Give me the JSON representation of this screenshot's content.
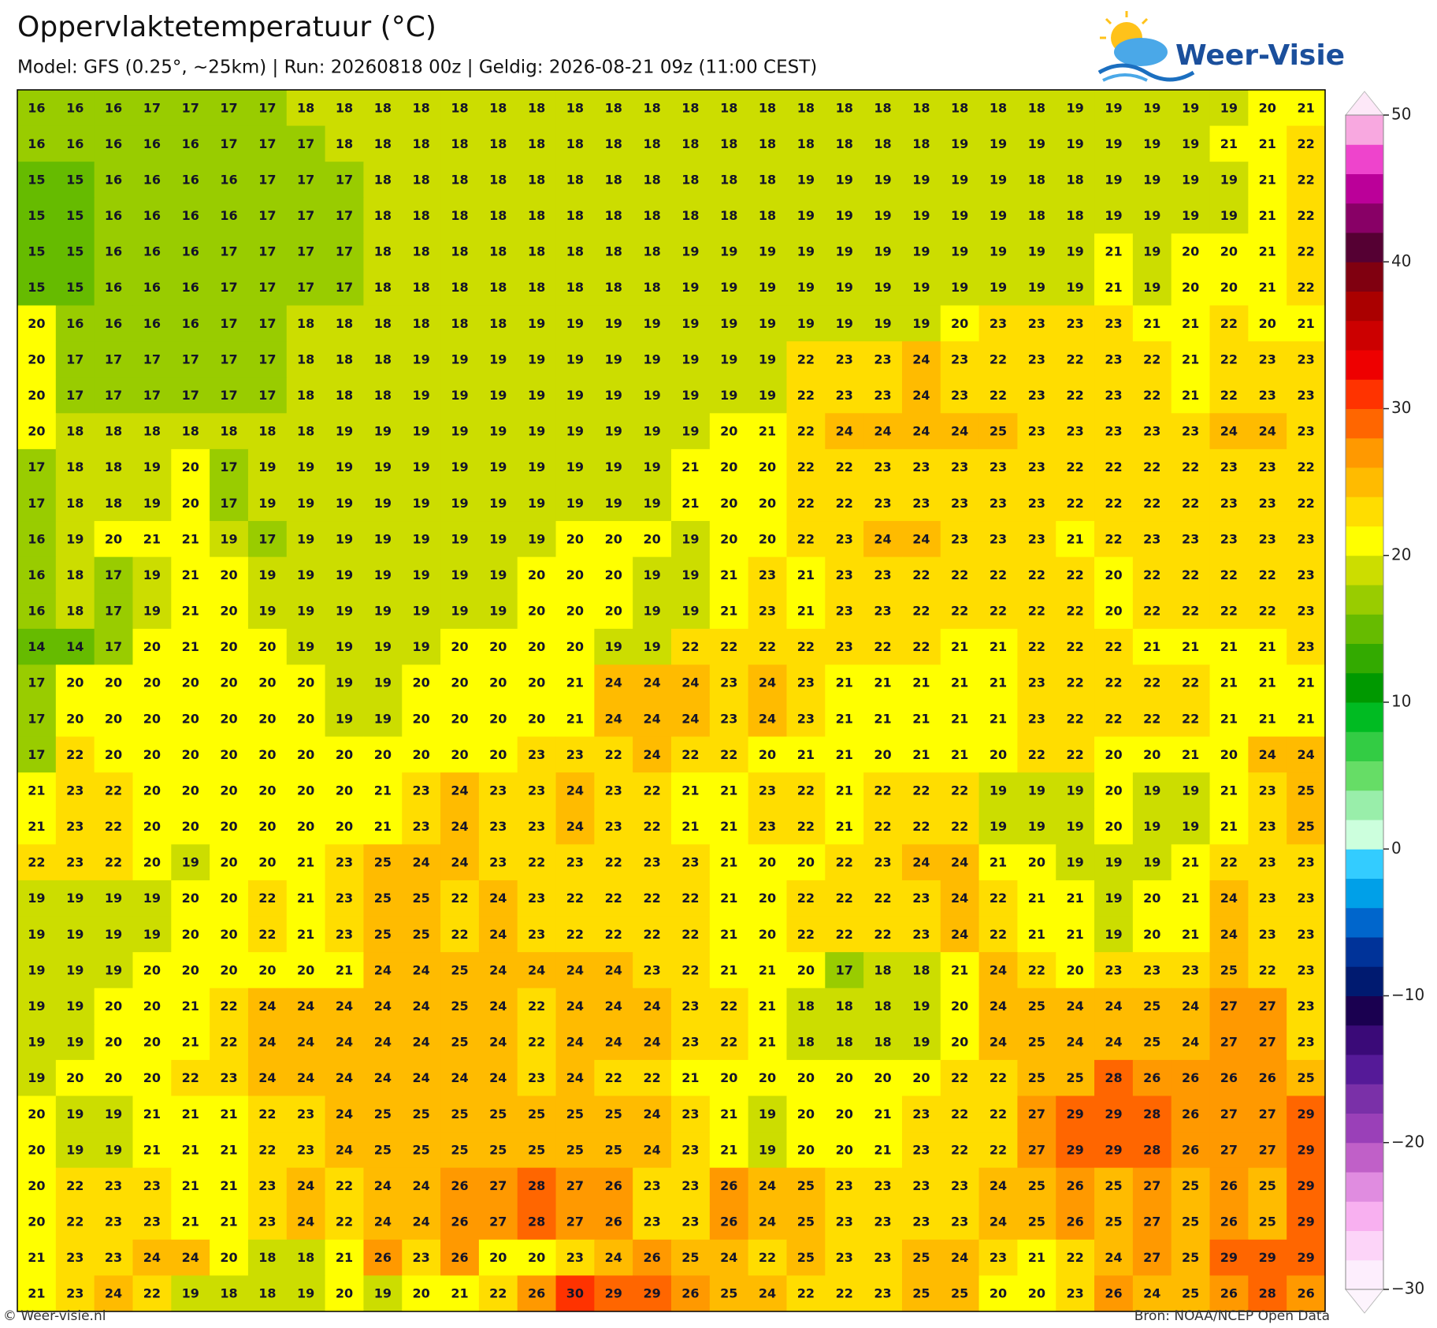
{
  "header": {
    "title": "Oppervlaktetemperatuur (°C)",
    "subtitle": "Model: GFS (0.25°, ~25km)  |  Run: 20260818 00z  |  Geldig: 2026-08-21 09z (11:00 CEST)",
    "logo": "Weer-Visie"
  },
  "map": {
    "grid": [
      [
        16,
        16,
        16,
        17,
        17,
        17,
        17,
        18,
        18,
        18,
        18,
        18,
        18,
        18,
        18,
        18,
        18,
        18,
        18,
        18,
        18,
        18,
        18,
        18,
        18,
        18,
        18,
        19,
        19,
        19,
        19,
        19,
        20,
        21
      ],
      [
        16,
        16,
        16,
        16,
        16,
        17,
        17,
        17,
        18,
        18,
        18,
        18,
        18,
        18,
        18,
        18,
        18,
        18,
        18,
        18,
        18,
        18,
        18,
        18,
        19,
        19,
        19,
        19,
        19,
        19,
        19,
        21,
        21,
        22
      ],
      [
        15,
        15,
        16,
        16,
        16,
        16,
        17,
        17,
        17,
        18,
        18,
        18,
        18,
        18,
        18,
        18,
        18,
        18,
        18,
        18,
        19,
        19,
        19,
        19,
        19,
        19,
        18,
        18,
        19,
        19,
        19,
        19,
        21,
        22
      ],
      [
        15,
        15,
        16,
        16,
        16,
        16,
        17,
        17,
        17,
        18,
        18,
        18,
        18,
        18,
        18,
        18,
        18,
        18,
        18,
        18,
        19,
        19,
        19,
        19,
        19,
        19,
        18,
        18,
        19,
        19,
        19,
        19,
        21,
        22
      ],
      [
        15,
        15,
        16,
        16,
        16,
        17,
        17,
        17,
        17,
        18,
        18,
        18,
        18,
        18,
        18,
        18,
        18,
        19,
        19,
        19,
        19,
        19,
        19,
        19,
        19,
        19,
        19,
        19,
        21,
        19,
        20,
        20,
        21,
        22
      ],
      [
        15,
        15,
        16,
        16,
        16,
        17,
        17,
        17,
        17,
        18,
        18,
        18,
        18,
        18,
        18,
        18,
        18,
        19,
        19,
        19,
        19,
        19,
        19,
        19,
        19,
        19,
        19,
        19,
        21,
        19,
        20,
        20,
        21,
        22
      ],
      [
        20,
        16,
        16,
        16,
        16,
        17,
        17,
        18,
        18,
        18,
        18,
        18,
        18,
        19,
        19,
        19,
        19,
        19,
        19,
        19,
        19,
        19,
        19,
        19,
        20,
        23,
        23,
        23,
        23,
        21,
        21,
        22,
        20,
        21
      ],
      [
        20,
        17,
        17,
        17,
        17,
        17,
        17,
        18,
        18,
        18,
        19,
        19,
        19,
        19,
        19,
        19,
        19,
        19,
        19,
        19,
        22,
        23,
        23,
        24,
        23,
        22,
        23,
        22,
        23,
        22,
        21,
        22,
        23,
        23
      ],
      [
        20,
        17,
        17,
        17,
        17,
        17,
        17,
        18,
        18,
        18,
        19,
        19,
        19,
        19,
        19,
        19,
        19,
        19,
        19,
        19,
        22,
        23,
        23,
        24,
        23,
        22,
        23,
        22,
        23,
        22,
        21,
        22,
        23,
        23
      ],
      [
        20,
        18,
        18,
        18,
        18,
        18,
        18,
        18,
        19,
        19,
        19,
        19,
        19,
        19,
        19,
        19,
        19,
        19,
        20,
        21,
        22,
        24,
        24,
        24,
        24,
        25,
        23,
        23,
        23,
        23,
        23,
        24,
        24,
        23
      ],
      [
        17,
        18,
        18,
        19,
        20,
        17,
        19,
        19,
        19,
        19,
        19,
        19,
        19,
        19,
        19,
        19,
        19,
        21,
        20,
        20,
        22,
        22,
        23,
        23,
        23,
        23,
        23,
        22,
        22,
        22,
        22,
        23,
        23,
        22
      ],
      [
        17,
        18,
        18,
        19,
        20,
        17,
        19,
        19,
        19,
        19,
        19,
        19,
        19,
        19,
        19,
        19,
        19,
        21,
        20,
        20,
        22,
        22,
        23,
        23,
        23,
        23,
        23,
        22,
        22,
        22,
        22,
        23,
        23,
        22
      ],
      [
        16,
        19,
        20,
        21,
        21,
        19,
        17,
        19,
        19,
        19,
        19,
        19,
        19,
        19,
        20,
        20,
        20,
        19,
        20,
        20,
        22,
        23,
        24,
        24,
        23,
        23,
        23,
        21,
        22,
        23,
        23,
        23,
        23,
        23
      ],
      [
        16,
        18,
        17,
        19,
        21,
        20,
        19,
        19,
        19,
        19,
        19,
        19,
        19,
        20,
        20,
        20,
        19,
        19,
        21,
        23,
        21,
        23,
        23,
        22,
        22,
        22,
        22,
        22,
        20,
        22,
        22,
        22,
        22,
        23
      ],
      [
        16,
        18,
        17,
        19,
        21,
        20,
        19,
        19,
        19,
        19,
        19,
        19,
        19,
        20,
        20,
        20,
        19,
        19,
        21,
        23,
        21,
        23,
        23,
        22,
        22,
        22,
        22,
        22,
        20,
        22,
        22,
        22,
        22,
        23
      ],
      [
        14,
        14,
        17,
        20,
        21,
        20,
        20,
        19,
        19,
        19,
        19,
        20,
        20,
        20,
        20,
        19,
        19,
        22,
        22,
        22,
        22,
        23,
        22,
        22,
        21,
        21,
        22,
        22,
        22,
        21,
        21,
        21,
        21,
        23
      ],
      [
        17,
        20,
        20,
        20,
        20,
        20,
        20,
        20,
        19,
        19,
        20,
        20,
        20,
        20,
        21,
        24,
        24,
        24,
        23,
        24,
        23,
        21,
        21,
        21,
        21,
        21,
        23,
        22,
        22,
        22,
        22,
        21,
        21,
        21
      ],
      [
        17,
        20,
        20,
        20,
        20,
        20,
        20,
        20,
        19,
        19,
        20,
        20,
        20,
        20,
        21,
        24,
        24,
        24,
        23,
        24,
        23,
        21,
        21,
        21,
        21,
        21,
        23,
        22,
        22,
        22,
        22,
        21,
        21,
        21
      ],
      [
        17,
        22,
        20,
        20,
        20,
        20,
        20,
        20,
        20,
        20,
        20,
        20,
        20,
        23,
        23,
        22,
        24,
        22,
        22,
        20,
        21,
        21,
        20,
        21,
        21,
        20,
        22,
        22,
        20,
        20,
        21,
        20,
        24,
        24
      ],
      [
        21,
        23,
        22,
        20,
        20,
        20,
        20,
        20,
        20,
        21,
        23,
        24,
        23,
        23,
        24,
        23,
        22,
        21,
        21,
        23,
        22,
        21,
        22,
        22,
        22,
        19,
        19,
        19,
        20,
        19,
        19,
        21,
        23,
        25
      ],
      [
        21,
        23,
        22,
        20,
        20,
        20,
        20,
        20,
        20,
        21,
        23,
        24,
        23,
        23,
        24,
        23,
        22,
        21,
        21,
        23,
        22,
        21,
        22,
        22,
        22,
        19,
        19,
        19,
        20,
        19,
        19,
        21,
        23,
        25
      ],
      [
        22,
        23,
        22,
        20,
        19,
        20,
        20,
        21,
        23,
        25,
        24,
        24,
        23,
        22,
        23,
        22,
        23,
        23,
        21,
        20,
        20,
        22,
        23,
        24,
        24,
        21,
        20,
        19,
        19,
        19,
        21,
        22,
        23,
        23
      ],
      [
        19,
        19,
        19,
        19,
        20,
        20,
        22,
        21,
        23,
        25,
        25,
        22,
        24,
        23,
        22,
        22,
        22,
        22,
        21,
        20,
        22,
        22,
        22,
        23,
        24,
        22,
        21,
        21,
        19,
        20,
        21,
        24,
        23,
        23
      ],
      [
        19,
        19,
        19,
        19,
        20,
        20,
        22,
        21,
        23,
        25,
        25,
        22,
        24,
        23,
        22,
        22,
        22,
        22,
        21,
        20,
        22,
        22,
        22,
        23,
        24,
        22,
        21,
        21,
        19,
        20,
        21,
        24,
        23,
        23
      ],
      [
        19,
        19,
        19,
        20,
        20,
        20,
        20,
        20,
        21,
        24,
        24,
        25,
        24,
        24,
        24,
        24,
        23,
        22,
        21,
        21,
        20,
        17,
        18,
        18,
        21,
        24,
        22,
        20,
        23,
        23,
        23,
        25,
        22,
        23
      ],
      [
        19,
        19,
        20,
        20,
        21,
        22,
        24,
        24,
        24,
        24,
        24,
        25,
        24,
        22,
        24,
        24,
        24,
        23,
        22,
        21,
        18,
        18,
        18,
        19,
        20,
        24,
        25,
        24,
        24,
        25,
        24,
        27,
        27,
        23
      ],
      [
        19,
        19,
        20,
        20,
        21,
        22,
        24,
        24,
        24,
        24,
        24,
        25,
        24,
        22,
        24,
        24,
        24,
        23,
        22,
        21,
        18,
        18,
        18,
        19,
        20,
        24,
        25,
        24,
        24,
        25,
        24,
        27,
        27,
        23
      ],
      [
        19,
        20,
        20,
        20,
        22,
        23,
        24,
        24,
        24,
        24,
        24,
        24,
        24,
        23,
        24,
        22,
        22,
        21,
        20,
        20,
        20,
        20,
        20,
        20,
        22,
        22,
        25,
        25,
        28,
        26,
        26,
        26,
        26,
        25
      ],
      [
        20,
        19,
        19,
        21,
        21,
        21,
        22,
        23,
        24,
        25,
        25,
        25,
        25,
        25,
        25,
        25,
        24,
        23,
        21,
        19,
        20,
        20,
        21,
        23,
        22,
        22,
        27,
        29,
        29,
        28,
        26,
        27,
        27,
        29
      ],
      [
        20,
        19,
        19,
        21,
        21,
        21,
        22,
        23,
        24,
        25,
        25,
        25,
        25,
        25,
        25,
        25,
        24,
        23,
        21,
        19,
        20,
        20,
        21,
        23,
        22,
        22,
        27,
        29,
        29,
        28,
        26,
        27,
        27,
        29
      ],
      [
        20,
        22,
        23,
        23,
        21,
        21,
        23,
        24,
        22,
        24,
        24,
        26,
        27,
        28,
        27,
        26,
        23,
        23,
        26,
        24,
        25,
        23,
        23,
        23,
        23,
        24,
        25,
        26,
        25,
        27,
        25,
        26,
        25,
        29
      ],
      [
        20,
        22,
        23,
        23,
        21,
        21,
        23,
        24,
        22,
        24,
        24,
        26,
        27,
        28,
        27,
        26,
        23,
        23,
        26,
        24,
        25,
        23,
        23,
        23,
        23,
        24,
        25,
        26,
        25,
        27,
        25,
        26,
        25,
        29
      ],
      [
        21,
        23,
        23,
        24,
        24,
        20,
        18,
        18,
        21,
        26,
        23,
        26,
        20,
        20,
        23,
        24,
        26,
        25,
        24,
        22,
        25,
        23,
        23,
        25,
        24,
        23,
        21,
        22,
        24,
        27,
        25,
        29,
        29,
        29
      ],
      [
        21,
        23,
        24,
        22,
        19,
        18,
        18,
        19,
        20,
        19,
        20,
        21,
        22,
        26,
        30,
        29,
        29,
        26,
        25,
        24,
        22,
        22,
        23,
        25,
        25,
        20,
        20,
        23,
        26,
        24,
        25,
        26,
        28,
        26
      ]
    ],
    "colorbar": {
      "lim": [
        -30,
        50
      ],
      "ticks": [
        {
          "value": -30,
          "label": "−30"
        },
        {
          "value": -20,
          "label": "−20"
        },
        {
          "value": -10,
          "label": "−10"
        },
        0,
        10,
        20,
        30,
        40,
        50
      ],
      "colors": [
        "#fdeefd",
        "#fcd4f8",
        "#f8b0f0",
        "#e08ce0",
        "#c060c8",
        "#9a40b8",
        "#7a30a8",
        "#551a98",
        "#3a0a78",
        "#1a0050",
        "#001a70",
        "#003399",
        "#0066cc",
        "#00a0e8",
        "#33ccff",
        "#ccffdd",
        "#99eeaa",
        "#66dd66",
        "#33cc44",
        "#00bb22",
        "#009900",
        "#33aa00",
        "#66bb00",
        "#99cc00",
        "#ccdd00",
        "#ffff00",
        "#ffdd00",
        "#ffbb00",
        "#ff9900",
        "#ff6600",
        "#ff3300",
        "#ee0000",
        "#cc0000",
        "#aa0000",
        "#800010",
        "#550033",
        "#880066",
        "#bb0099",
        "#ee44cc",
        "#f8a8e0"
      ]
    }
  },
  "footer": {
    "left": "© Weer-visie.nl",
    "right": "Bron: NOAA/NCEP Open Data"
  }
}
